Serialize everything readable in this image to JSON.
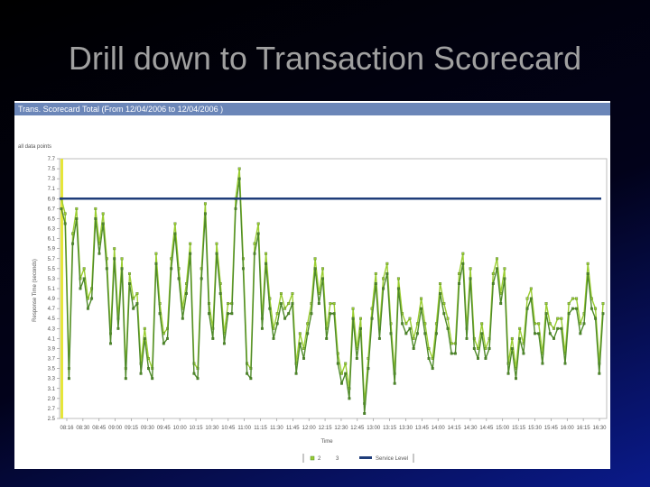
{
  "slide": {
    "title": "Drill down to Transaction Scorecard"
  },
  "panel": {
    "header": "Trans. Scorecard Total (From 12/04/2006 to 12/04/2006 )"
  },
  "chart_data": {
    "type": "line",
    "title": "",
    "corner_label": "all data points",
    "xlabel": "Time",
    "ylabel": "Response Time (seconds)",
    "ylim": [
      2.5,
      7.7
    ],
    "y_ticks": [
      "7.7",
      "7.5",
      "7.3",
      "7.1",
      "6.9",
      "6.7",
      "6.5",
      "6.3",
      "6.1",
      "5.9",
      "5.7",
      "5.5",
      "5.3",
      "5.1",
      "4.9",
      "4.7",
      "4.5",
      "4.3",
      "4.1",
      "3.9",
      "3.7",
      "3.5",
      "3.3",
      "3.1",
      "2.9",
      "2.7",
      "2.5"
    ],
    "x_tick_labels": [
      "08:16",
      "08:30",
      "08:45",
      "09:00",
      "09:15",
      "09:30",
      "09:45",
      "10:00",
      "10:15",
      "10:30",
      "10:45",
      "11:00",
      "11:15",
      "11:30",
      "11:45",
      "12:00",
      "12:15",
      "12:30",
      "12:45",
      "13:00",
      "13:15",
      "13:30",
      "13:45",
      "14:00",
      "14:15",
      "14:30",
      "14:45",
      "15:00",
      "15:15",
      "15:30",
      "15:45",
      "16:00",
      "16:15",
      "16:30"
    ],
    "grid": false,
    "legend_position": "bottom",
    "service_level": 6.9,
    "series": [
      {
        "name": "",
        "color": "#9acd32",
        "values": [
          6.9,
          6.6,
          3.5,
          6.2,
          6.7,
          5.3,
          5.5,
          4.9,
          5.1,
          6.7,
          6.0,
          6.6,
          5.7,
          4.2,
          5.9,
          4.5,
          5.7,
          3.5,
          5.4,
          4.9,
          5.0,
          3.6,
          4.3,
          3.7,
          3.5,
          5.8,
          4.8,
          4.2,
          4.3,
          5.7,
          6.4,
          5.5,
          4.7,
          5.2,
          6.0,
          3.6,
          3.5,
          5.5,
          6.8,
          4.8,
          4.3,
          6.0,
          5.2,
          4.2,
          4.8,
          4.8,
          6.9,
          7.5,
          5.7,
          3.6,
          3.5,
          6.0,
          6.4,
          4.5,
          5.8,
          4.9,
          4.3,
          4.6,
          5.0,
          4.7,
          4.8,
          5.0,
          3.6,
          4.2,
          3.9,
          4.4,
          4.8,
          5.7,
          5.0,
          5.5,
          4.3,
          4.8,
          4.8,
          3.8,
          3.4,
          3.6,
          3.1,
          4.7,
          3.9,
          4.5,
          2.8,
          3.7,
          4.7,
          5.4,
          4.3,
          5.3,
          5.6,
          4.4,
          3.4,
          5.3,
          4.6,
          4.4,
          4.5,
          4.1,
          4.4,
          4.9,
          4.4,
          3.9,
          3.7,
          4.4,
          5.2,
          4.8,
          4.5,
          4.0,
          4.0,
          5.4,
          5.8,
          4.3,
          5.5,
          4.1,
          3.9,
          4.4,
          3.9,
          4.1,
          5.4,
          5.7,
          5.0,
          5.5,
          3.6,
          4.1,
          3.5,
          4.3,
          4.0,
          4.9,
          5.1,
          4.4,
          4.4,
          3.8,
          4.8,
          4.4,
          4.3,
          4.5,
          4.5,
          3.8,
          4.8,
          4.9,
          4.9,
          4.4,
          4.6,
          5.6,
          4.9,
          4.7,
          3.6,
          4.8
        ]
      },
      {
        "name": "",
        "color": "#4f8a2a",
        "values": [
          6.7,
          6.4,
          3.3,
          6.0,
          6.5,
          5.1,
          5.3,
          4.7,
          4.9,
          6.5,
          5.8,
          6.4,
          5.5,
          4.0,
          5.7,
          4.3,
          5.5,
          3.3,
          5.2,
          4.7,
          4.8,
          3.4,
          4.1,
          3.5,
          3.3,
          5.6,
          4.6,
          4.0,
          4.1,
          5.5,
          6.2,
          5.3,
          4.5,
          5.0,
          5.8,
          3.4,
          3.3,
          5.3,
          6.6,
          4.6,
          4.1,
          5.8,
          5.0,
          4.0,
          4.6,
          4.6,
          6.7,
          7.3,
          5.5,
          3.4,
          3.3,
          5.8,
          6.2,
          4.3,
          5.6,
          4.7,
          4.1,
          4.4,
          4.8,
          4.5,
          4.6,
          4.8,
          3.4,
          4.0,
          3.7,
          4.2,
          4.6,
          5.5,
          4.8,
          5.3,
          4.1,
          4.6,
          4.6,
          3.6,
          3.2,
          3.4,
          2.9,
          4.5,
          3.7,
          4.3,
          2.6,
          3.5,
          4.5,
          5.2,
          4.1,
          5.1,
          5.4,
          4.2,
          3.2,
          5.1,
          4.4,
          4.2,
          4.3,
          3.9,
          4.2,
          4.7,
          4.2,
          3.7,
          3.5,
          4.2,
          5.0,
          4.6,
          4.3,
          3.8,
          3.8,
          5.2,
          5.6,
          4.1,
          5.3,
          3.9,
          3.7,
          4.2,
          3.7,
          3.9,
          5.2,
          5.5,
          4.8,
          5.3,
          3.4,
          3.9,
          3.3,
          4.1,
          3.8,
          4.7,
          4.9,
          4.2,
          4.2,
          3.6,
          4.6,
          4.2,
          4.1,
          4.3,
          4.3,
          3.6,
          4.6,
          4.7,
          4.7,
          4.2,
          4.4,
          5.4,
          4.7,
          4.5,
          3.4,
          4.6
        ]
      }
    ],
    "legend": [
      {
        "label": "2",
        "marker": "square"
      },
      {
        "label": "3",
        "marker": "none"
      },
      {
        "label": "Service Level",
        "marker": "bar"
      }
    ]
  }
}
